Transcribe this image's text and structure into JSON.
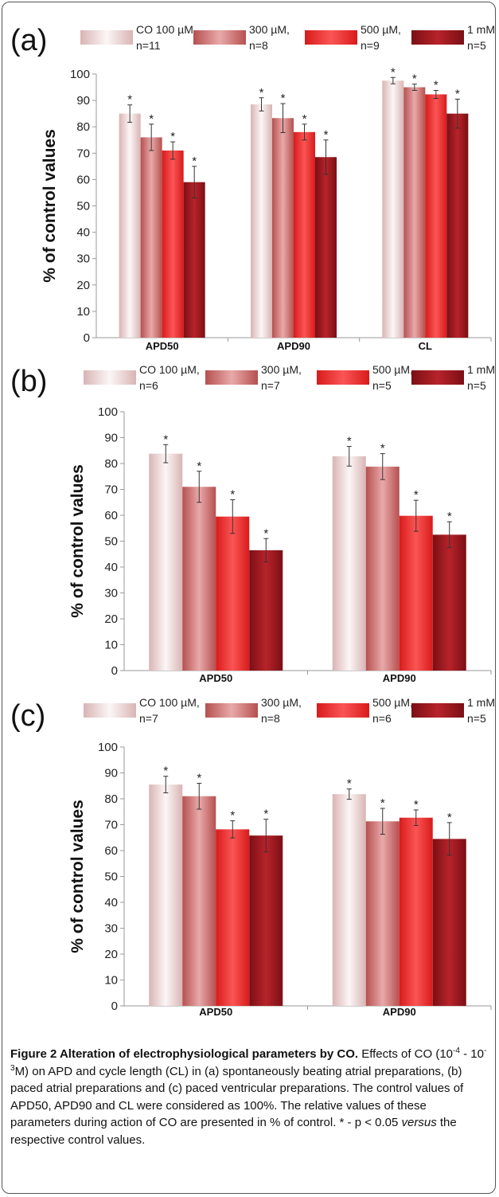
{
  "chart_data": [
    {
      "type": "bar",
      "panel_label": "(a)",
      "ylabel": "% of control values",
      "ylim": [
        0,
        100
      ],
      "yticks": [
        0,
        10,
        20,
        30,
        40,
        50,
        60,
        70,
        80,
        90,
        100
      ],
      "categories": [
        "APD50",
        "APD90",
        "CL"
      ],
      "legend": [
        {
          "line1": "CO  100 µM,",
          "line2": "n=11"
        },
        {
          "line1": "300 µM,",
          "line2": "n=8"
        },
        {
          "line1": "500 µM,",
          "line2": "n=9"
        },
        {
          "line1": "1 mM,",
          "line2": "n=5"
        }
      ],
      "series": [
        {
          "values": [
            85,
            88.5,
            97.5
          ],
          "errors": [
            3.3,
            2.5,
            1.2
          ],
          "marks": [
            "*",
            "*",
            "*"
          ]
        },
        {
          "values": [
            76,
            83.3,
            95
          ],
          "errors": [
            5,
            5.5,
            1.2
          ],
          "marks": [
            "*",
            "*",
            "*"
          ]
        },
        {
          "values": [
            71,
            78,
            92.3
          ],
          "errors": [
            3.3,
            3,
            1.5
          ],
          "marks": [
            "*",
            "*",
            "*"
          ]
        },
        {
          "values": [
            59,
            68.5,
            85
          ],
          "errors": [
            6,
            6.5,
            5.5
          ],
          "marks": [
            "*",
            "*",
            "*"
          ]
        }
      ]
    },
    {
      "type": "bar",
      "panel_label": "(b)",
      "ylabel": "% of control values",
      "ylim": [
        0,
        100
      ],
      "yticks": [
        0,
        10,
        20,
        30,
        40,
        50,
        60,
        70,
        80,
        90,
        100
      ],
      "categories": [
        "APD50",
        "APD90"
      ],
      "legend": [
        {
          "line1": "CO  100 µM,",
          "line2": "n=6"
        },
        {
          "line1": "300 µM,",
          "line2": "n=7"
        },
        {
          "line1": "500 µM,",
          "line2": "n=5"
        },
        {
          "line1": "1 mM,",
          "line2": "n=5"
        }
      ],
      "series": [
        {
          "values": [
            83.8,
            82.8
          ],
          "errors": [
            3.5,
            3.8
          ],
          "marks": [
            "*",
            "*"
          ]
        },
        {
          "values": [
            71,
            78.8
          ],
          "errors": [
            6,
            5
          ],
          "marks": [
            "*",
            "*"
          ]
        },
        {
          "values": [
            59.5,
            59.8
          ],
          "errors": [
            6.5,
            6
          ],
          "marks": [
            "*",
            "*"
          ]
        },
        {
          "values": [
            46.5,
            52.5
          ],
          "errors": [
            4.5,
            5
          ],
          "marks": [
            "*",
            "*"
          ]
        }
      ]
    },
    {
      "type": "bar",
      "panel_label": "(c)",
      "ylabel": "% of control values",
      "ylim": [
        0,
        100
      ],
      "yticks": [
        0,
        10,
        20,
        30,
        40,
        50,
        60,
        70,
        80,
        90,
        100
      ],
      "categories": [
        "APD50",
        "APD90"
      ],
      "legend": [
        {
          "line1": "CO  100 µM,",
          "line2": "n=7"
        },
        {
          "line1": "300 µM,",
          "line2": "n=8"
        },
        {
          "line1": "500 µM,",
          "line2": "n=6"
        },
        {
          "line1": "1 mM,",
          "line2": "n=5"
        }
      ],
      "series": [
        {
          "values": [
            85.5,
            81.8
          ],
          "errors": [
            3.2,
            2
          ],
          "marks": [
            "*",
            "*"
          ]
        },
        {
          "values": [
            81,
            71.3
          ],
          "errors": [
            5,
            5
          ],
          "marks": [
            "*",
            "*"
          ]
        },
        {
          "values": [
            68.2,
            72.7
          ],
          "errors": [
            3.3,
            3
          ],
          "marks": [
            "*",
            "*"
          ]
        },
        {
          "values": [
            65.8,
            64.5
          ],
          "errors": [
            6.3,
            6.3
          ],
          "marks": [
            "*",
            "*"
          ]
        }
      ]
    }
  ],
  "colors": {
    "series_edge": [
      "#d9b4b4",
      "#b65050",
      "#d81b1b",
      "#7a0f15"
    ],
    "series_mid": [
      "#fcf6f6",
      "#e9a9a9",
      "#fb5555",
      "#b8232a"
    ],
    "axis": "#9a9a9a"
  },
  "caption": {
    "title": "Figure 2 Alteration of electrophysiological parameters by CO",
    "period": ".",
    "line_a": "Effects of CO (10",
    "exp1": "-4",
    "mid": " - 10",
    "exp2": "-3",
    "line_b": "M) on APD and cycle length (CL) in (a) spontaneously beating atrial preparations, (b) paced atrial preparations and (c) paced ventricular preparations. The control values of APD50, APD90 and CL were considered as 100%. The relative values of these parameters during action of CO are presented in % of control. * - p < 0.05 ",
    "versus": "versus",
    "line_c": " the respective control values."
  }
}
